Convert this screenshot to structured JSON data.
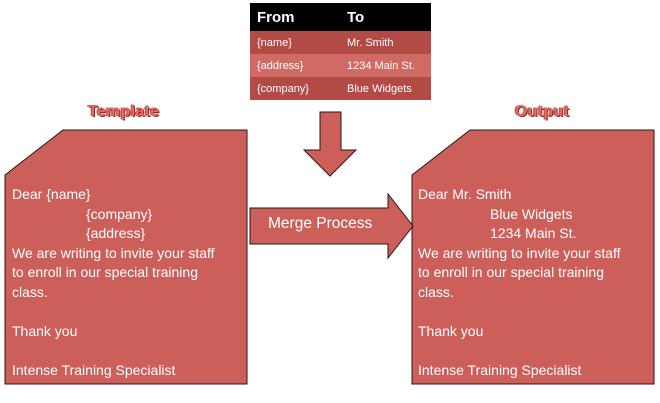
{
  "mapping_table": {
    "headers": {
      "from": "From",
      "to": "To"
    },
    "rows": [
      {
        "from": "{name}",
        "to": "Mr. Smith"
      },
      {
        "from": "{address}",
        "to": "1234 Main St."
      },
      {
        "from": "{company}",
        "to": "Blue Widgets"
      }
    ]
  },
  "template": {
    "title": "Template",
    "lines": [
      "Dear {name}",
      "{company}",
      "{address}",
      "We are writing to invite your staff",
      "to enroll in our special training",
      "class.",
      "",
      "Thank you",
      "",
      "Intense Training Specialist"
    ]
  },
  "output": {
    "title": "Output",
    "lines": [
      "Dear Mr. Smith",
      "Blue Widgets",
      "1234 Main St.",
      "We are writing to invite your staff",
      "to enroll in our special training",
      "class.",
      "",
      "Thank you",
      "",
      "Intense Training Specialist"
    ]
  },
  "merge_label": "Merge Process",
  "colors": {
    "doc_fill": "#cd5f5a",
    "doc_stroke": "#2b1614",
    "table_dark": "#b24a45",
    "table_light": "#d06a65",
    "title_color": "#e8695f"
  }
}
